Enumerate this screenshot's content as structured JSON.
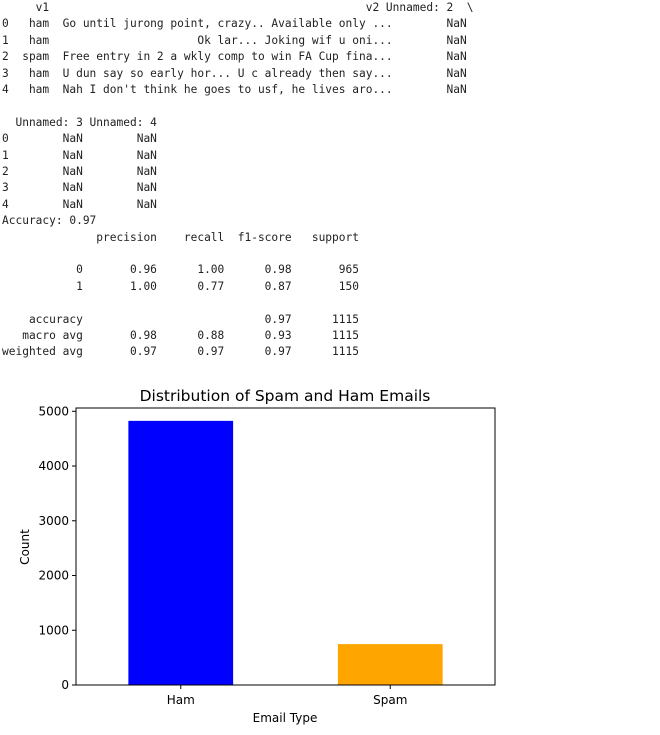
{
  "dataframe_preview": {
    "lines": [
      "     v1                                               v2 Unnamed: 2  \\",
      "0   ham  Go until jurong point, crazy.. Available only ...        NaN",
      "1   ham                      Ok lar... Joking wif u oni...        NaN",
      "2  spam  Free entry in 2 a wkly comp to win FA Cup fina...        NaN",
      "3   ham  U dun say so early hor... U c already then say...        NaN",
      "4   ham  Nah I don't think he goes to usf, he lives aro...        NaN"
    ]
  },
  "dataframe_continued": {
    "lines": [
      "  Unnamed: 3 Unnamed: 4",
      "0        NaN        NaN",
      "1        NaN        NaN",
      "2        NaN        NaN",
      "3        NaN        NaN",
      "4        NaN        NaN"
    ]
  },
  "accuracy_line": "Accuracy: 0.97",
  "classification_report": {
    "lines": [
      "              precision    recall  f1-score   support",
      "",
      "           0       0.96      1.00      0.98       965",
      "           1       1.00      0.77      0.87       150",
      "",
      "    accuracy                           0.97      1115",
      "   macro avg       0.98      0.88      0.93      1115",
      "weighted avg       0.97      0.97      0.97      1115"
    ]
  },
  "chart_data": {
    "type": "bar",
    "title": "Distribution of Spam and Ham Emails",
    "xlabel": "Email Type",
    "ylabel": "Count",
    "categories": [
      "Ham",
      "Spam"
    ],
    "values": [
      4825,
      747
    ],
    "colors": [
      "#0000ff",
      "#ffa500"
    ],
    "ylim": [
      0,
      5060
    ],
    "yticks": [
      0,
      1000,
      2000,
      3000,
      4000,
      5000
    ],
    "grid": false,
    "legend": "none"
  }
}
